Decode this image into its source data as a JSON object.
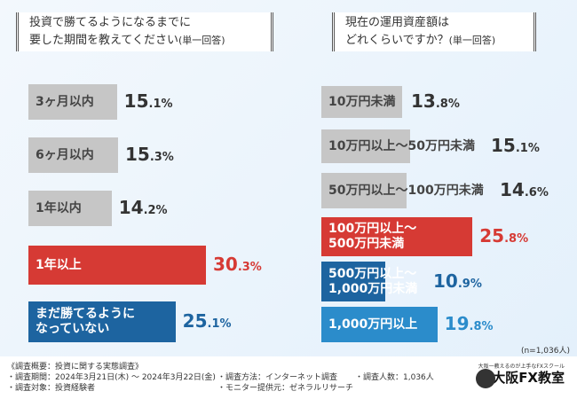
{
  "questions": [
    {
      "line1": "投資で勝てるようになるまでに",
      "line2": "要した期間を教えてください",
      "suffix": "(単一回答)"
    },
    {
      "line1": "現在の運用資産額は",
      "line2": "どれくらいですか？",
      "suffix": "(単一回答)"
    }
  ],
  "chart_data": [
    {
      "type": "bar",
      "orientation": "horizontal",
      "title": "投資で勝てるようになるまでに要した期間を教えてください(単一回答)",
      "categories": [
        "3ヶ月以内",
        "6ヶ月以内",
        "1年以内",
        "1年以上",
        "まだ勝てるようになっていない"
      ],
      "category_lines": [
        [
          "3ヶ月以内"
        ],
        [
          "6ヶ月以内"
        ],
        [
          "1年以内"
        ],
        [
          "1年以上"
        ],
        [
          "まだ勝てるように",
          "なっていない"
        ]
      ],
      "values": [
        15.1,
        15.3,
        14.2,
        30.3,
        25.1
      ],
      "value_labels": [
        [
          "15",
          ".1%"
        ],
        [
          "15",
          ".3%"
        ],
        [
          "14",
          ".2%"
        ],
        [
          "30",
          ".3%"
        ],
        [
          "25",
          ".1%"
        ]
      ],
      "colors": [
        "#c6c6c6",
        "#c6c6c6",
        "#c6c6c6",
        "#d63a34",
        "#1d64a0"
      ],
      "unit": "%"
    },
    {
      "type": "bar",
      "orientation": "horizontal",
      "title": "現在の運用資産額はどれくらいですか？(単一回答)",
      "categories": [
        "10万円未満",
        "10万円以上〜50万円未満",
        "50万円以上〜100万円未満",
        "100万円以上〜500万円未満",
        "500万円以上〜1,000万円未満",
        "1,000万円以上"
      ],
      "category_lines": [
        [
          "10万円未満"
        ],
        [
          "10万円以上〜50万円未満"
        ],
        [
          "50万円以上〜100万円未満"
        ],
        [
          "100万円以上〜",
          "500万円未満"
        ],
        [
          "500万円以上〜",
          "1,000万円未満"
        ],
        [
          "1,000万円以上"
        ]
      ],
      "values": [
        13.8,
        15.1,
        14.6,
        25.8,
        10.9,
        19.8
      ],
      "value_labels": [
        [
          "13",
          ".8%"
        ],
        [
          "15",
          ".1%"
        ],
        [
          "14",
          ".6%"
        ],
        [
          "25",
          ".8%"
        ],
        [
          "10",
          ".9%"
        ],
        [
          "19",
          ".8%"
        ]
      ],
      "colors": [
        "#c6c6c6",
        "#c6c6c6",
        "#c6c6c6",
        "#d63a34",
        "#1d64a0",
        "#2b8ccb"
      ],
      "unit": "%"
    }
  ],
  "sample": "(n=1,036人)",
  "footer": {
    "title": "《調査概要：投資に関する実態調査》",
    "period": "・調査期間：2024年3月21日(木) 〜 2024年3月22日(金)",
    "target": "・調査対象：投資経験者",
    "method": "・調査方法：インターネット調査",
    "provider": "・モニター提供元：ゼネラルリサーチ",
    "count": "・調査人数：1,036人",
    "logo_tagline": "大阪一教えるのが上手なFXスクール",
    "logo_name": "大阪FX教室"
  }
}
